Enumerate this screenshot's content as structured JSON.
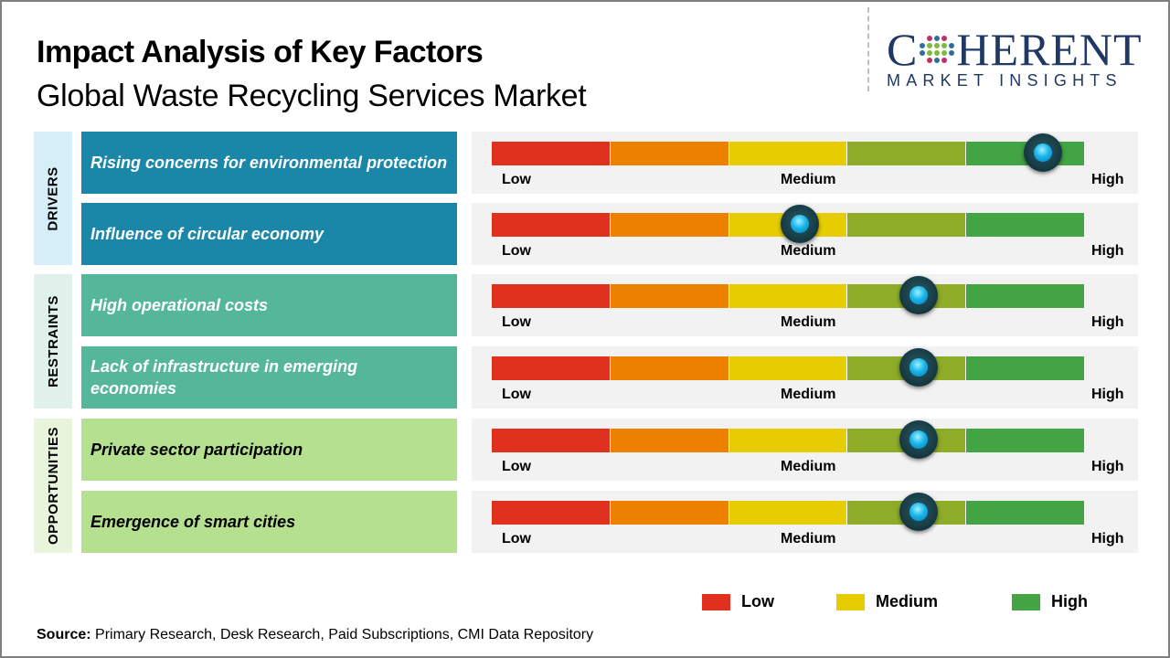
{
  "header": {
    "title": "Impact Analysis of Key Factors",
    "subtitle": "Global Waste Recycling Services Market"
  },
  "logo": {
    "main_left": "C",
    "main_right": "HERENT",
    "sub": "MARKET INSIGHTS"
  },
  "colors": {
    "drivers_label_bg": "#d6eef7",
    "drivers_bg": "#1a87a9",
    "restraints_label_bg": "#e0f0ea",
    "restraints_bg": "#55b79a",
    "opportunities_label_bg": "#e8f5dc",
    "opportunities_bg": "#b5e08f",
    "scale": [
      "#e0301e",
      "#ee8000",
      "#e6cc00",
      "#8eac28",
      "#43a443"
    ]
  },
  "chart_data": {
    "type": "table",
    "title": "Impact Analysis of Key Factors",
    "subtitle": "Global Waste Recycling Services Market",
    "scale_labels": [
      "Low",
      "Medium",
      "High"
    ],
    "scale_range": [
      0,
      1
    ],
    "categories": [
      {
        "name": "DRIVERS",
        "factors": [
          {
            "label": "Rising concerns for environmental protection",
            "impact": 0.93
          },
          {
            "label": "Influence of circular economy",
            "impact": 0.52
          }
        ]
      },
      {
        "name": "RESTRAINTS",
        "factors": [
          {
            "label": "High operational  costs",
            "impact": 0.72
          },
          {
            "label": "Lack of infrastructure  in emerging economies",
            "impact": 0.72
          }
        ]
      },
      {
        "name": "OPPORTUNITIES",
        "factors": [
          {
            "label": "Private  sector  participation",
            "impact": 0.72
          },
          {
            "label": "Emergence  of smart cities",
            "impact": 0.72
          }
        ]
      }
    ],
    "legend": [
      {
        "label": "Low",
        "color": "#e0301e"
      },
      {
        "label": "Medium",
        "color": "#e6cc00"
      },
      {
        "label": "High",
        "color": "#43a443"
      }
    ]
  },
  "footer": {
    "source_label": "Source:",
    "source_text": " Primary Research, Desk Research, Paid Subscriptions, CMI Data Repository"
  }
}
